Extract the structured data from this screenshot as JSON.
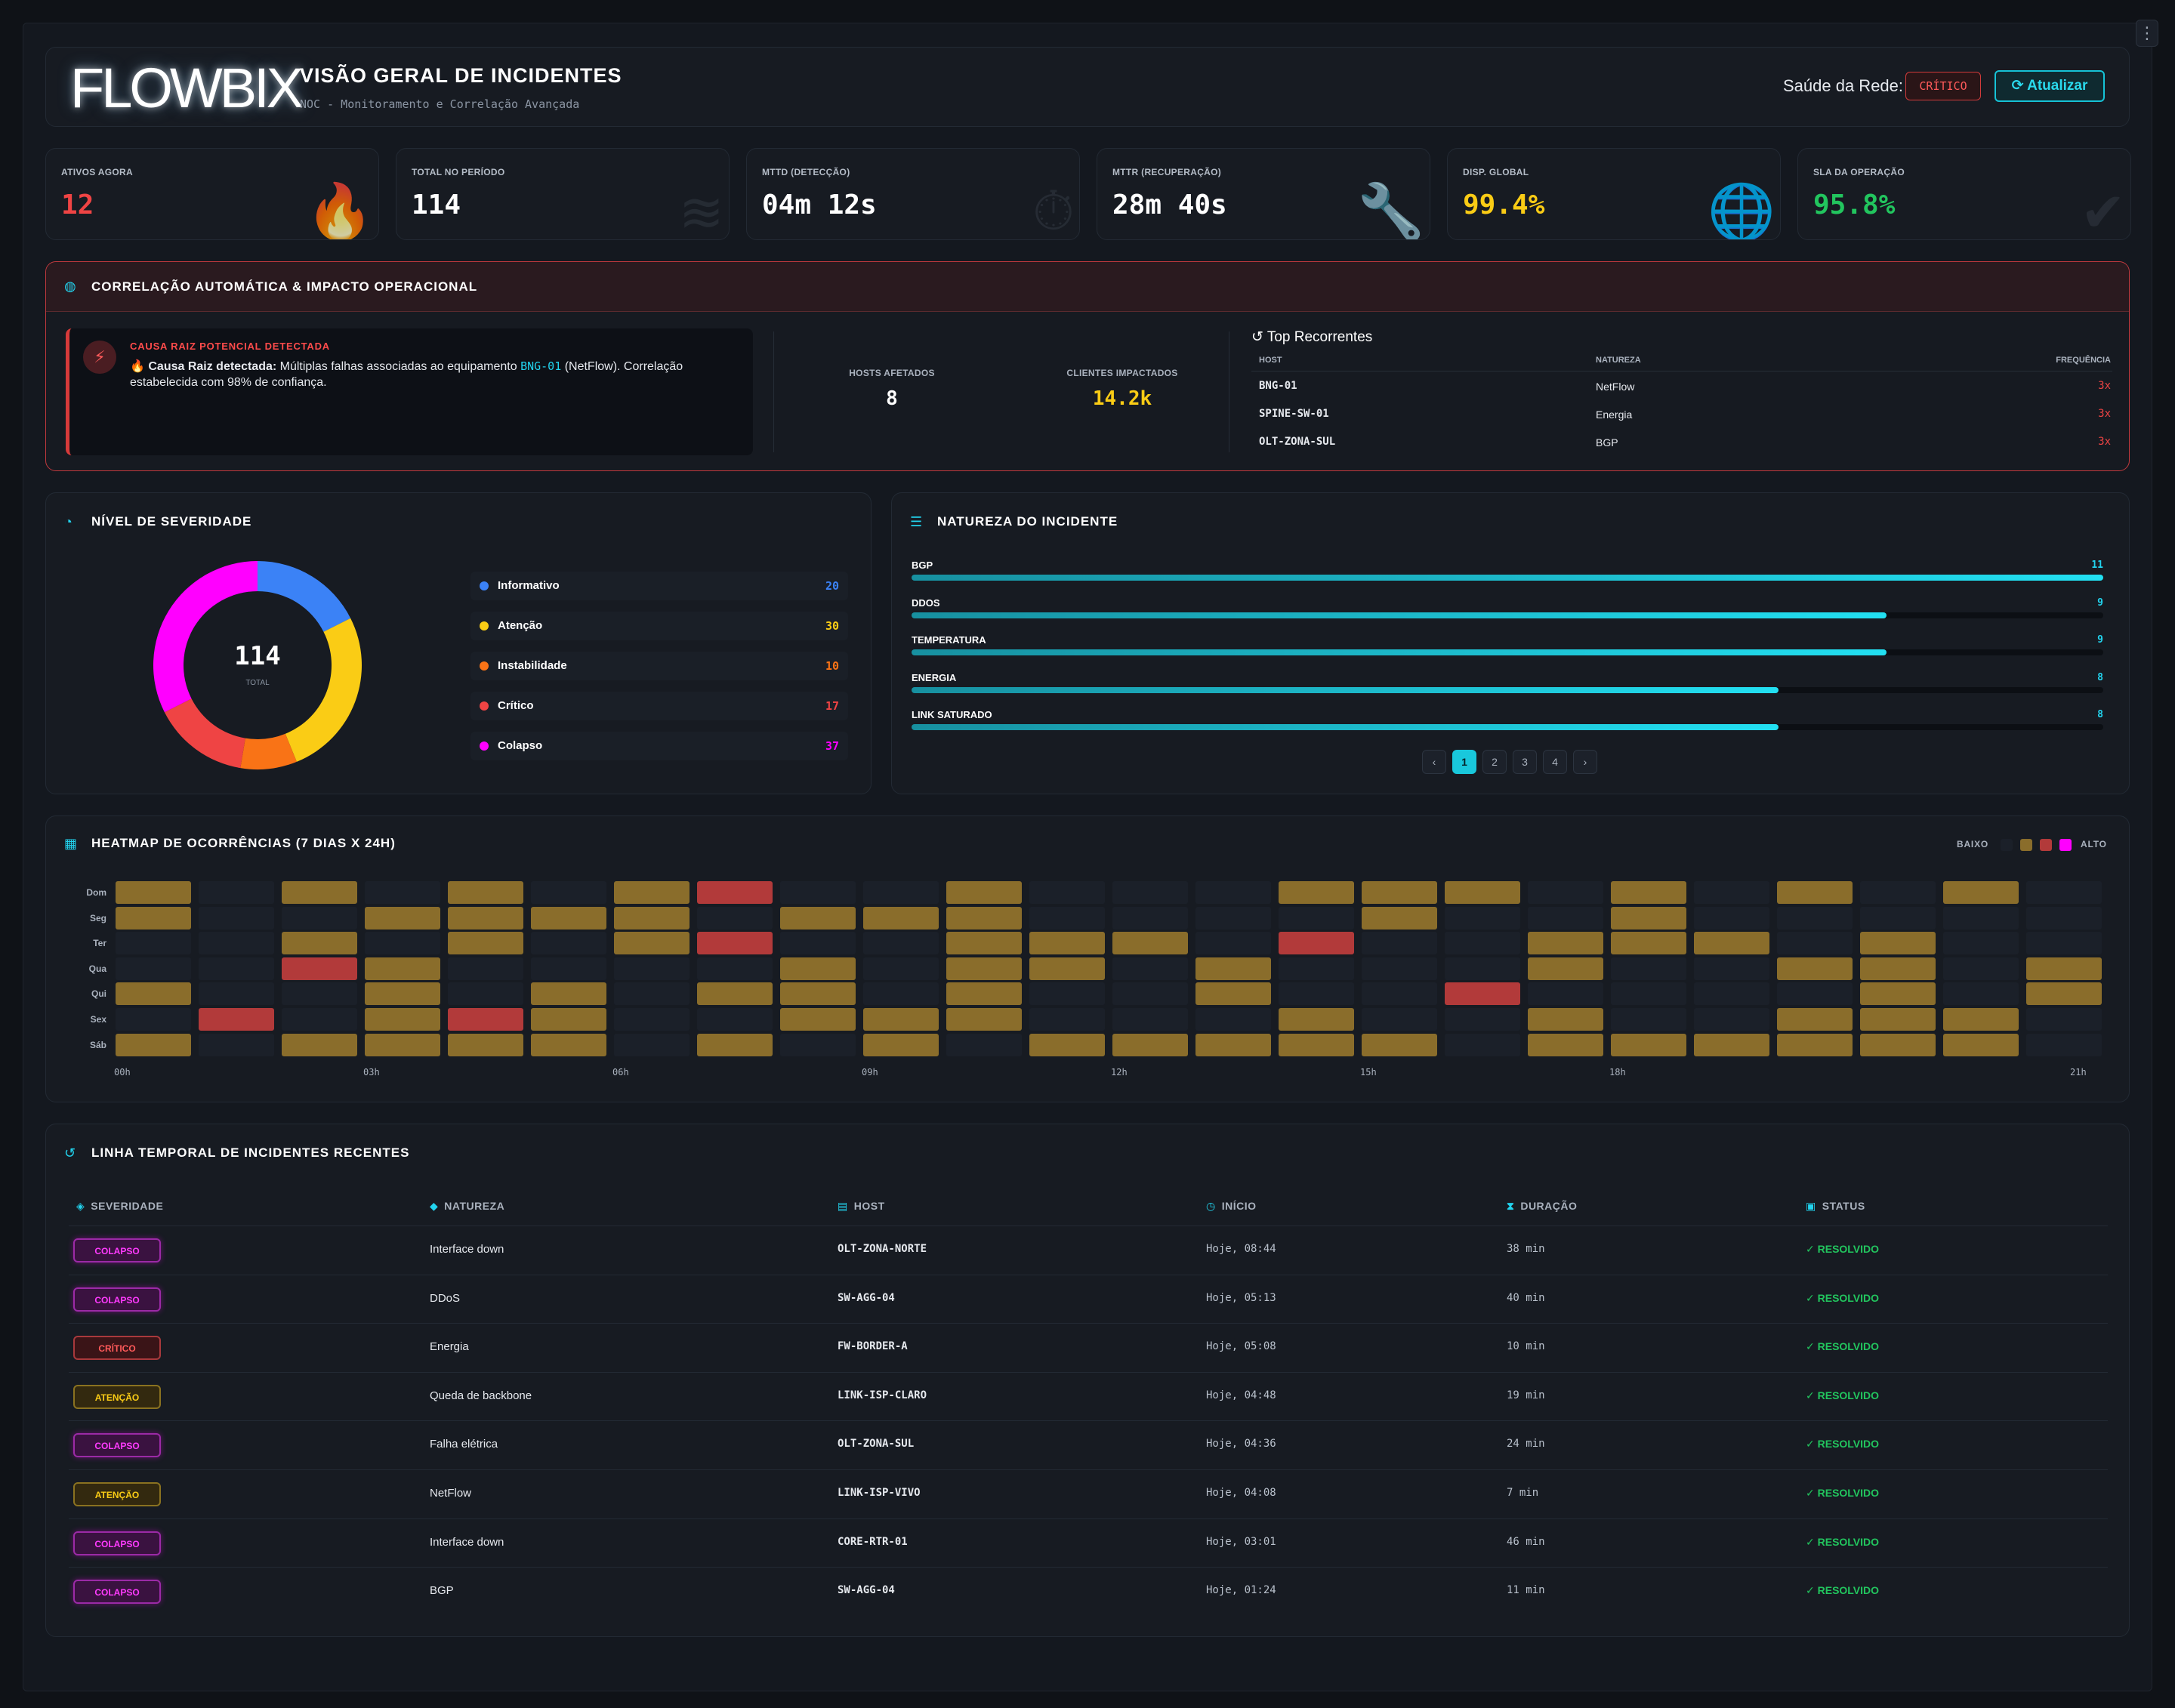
{
  "header": {
    "logo": "FLOWBIX",
    "title": "VISÃO GERAL DE INCIDENTES",
    "subtitle": "NOC - Monitoramento e Correlação Avançada",
    "health_label": "Saúde da Rede:",
    "health_status": "CRÍTICO",
    "refresh_label": "Atualizar"
  },
  "kpis": [
    {
      "label": "ATIVOS AGORA",
      "value": "12",
      "color": "#ef4444",
      "icon": "fire-icon"
    },
    {
      "label": "TOTAL NO PERÍODO",
      "value": "114",
      "color": "#ffffff",
      "icon": "layers-icon"
    },
    {
      "label": "MTTD (DETECÇÃO)",
      "value": "04m 12s",
      "color": "#ffffff",
      "icon": "stopwatch-icon"
    },
    {
      "label": "MTTR (RECUPERAÇÃO)",
      "value": "28m 40s",
      "color": "#ffffff",
      "icon": "wrench-icon"
    },
    {
      "label": "DISP. GLOBAL",
      "value": "99.4%",
      "color": "#facc15",
      "icon": "globe-icon"
    },
    {
      "label": "SLA DA OPERAÇÃO",
      "value": "95.8%",
      "color": "#22c55e",
      "icon": "check-double-icon"
    }
  ],
  "correlation": {
    "title": "CORRELAÇÃO AUTOMÁTICA & IMPACTO OPERACIONAL",
    "rc_tag": "CAUSA RAIZ POTENCIAL DETECTADA",
    "rc_prefix": "🔥 Causa Raiz detectada:",
    "rc_text1": " Múltiplas falhas associadas ao equipamento ",
    "rc_host": "BNG-01",
    "rc_text2": " (NetFlow). Correlação estabelecida com 98% de confiança.",
    "hosts_label": "HOSTS AFETADOS",
    "hosts_value": "8",
    "clients_label": "CLIENTES IMPACTADOS",
    "clients_value": "14.2k",
    "top_title": "Top Recorrentes",
    "top_headers": [
      "HOST",
      "NATUREZA",
      "FREQUÊNCIA"
    ],
    "top_rows": [
      {
        "host": "BNG-01",
        "nature": "NetFlow",
        "freq": "3x"
      },
      {
        "host": "SPINE-SW-01",
        "nature": "Energia",
        "freq": "3x"
      },
      {
        "host": "OLT-ZONA-SUL",
        "nature": "BGP",
        "freq": "3x"
      }
    ]
  },
  "severity": {
    "title": "NÍVEL DE SEVERIDADE",
    "total": "114",
    "total_label": "TOTAL",
    "levels": [
      {
        "name": "Informativo",
        "count": "20",
        "value": 20,
        "color": "#3b82f6"
      },
      {
        "name": "Atenção",
        "count": "30",
        "value": 30,
        "color": "#facc15"
      },
      {
        "name": "Instabilidade",
        "count": "10",
        "value": 10,
        "color": "#f97316"
      },
      {
        "name": "Crítico",
        "count": "17",
        "value": 17,
        "color": "#ef4444"
      },
      {
        "name": "Colapso",
        "count": "37",
        "value": 37,
        "color": "#ff00ff"
      }
    ]
  },
  "nature": {
    "title": "NATUREZA DO INCIDENTE",
    "items": [
      {
        "name": "BGP",
        "count": "11",
        "value": 11
      },
      {
        "name": "DDOS",
        "count": "9",
        "value": 9
      },
      {
        "name": "TEMPERATURA",
        "count": "9",
        "value": 9
      },
      {
        "name": "ENERGIA",
        "count": "8",
        "value": 8
      },
      {
        "name": "LINK SATURADO",
        "count": "8",
        "value": 8
      }
    ],
    "max": 11,
    "pages": [
      "1",
      "2",
      "3",
      "4"
    ],
    "prev": "‹",
    "next": "›"
  },
  "heatmap": {
    "title": "HEATMAP DE OCORRÊNCIAS (7 DIAS X 24H)",
    "low_label": "BAIXO",
    "high_label": "ALTO",
    "days": [
      "Dom",
      "Seg",
      "Ter",
      "Qua",
      "Qui",
      "Sex",
      "Sáb"
    ],
    "hours": [
      "00h",
      "03h",
      "06h",
      "09h",
      "12h",
      "15h",
      "18h",
      "21h"
    ],
    "colors": {
      "0": "#1b2029",
      "1": "#8a6d2b",
      "2": "#b23a3a"
    },
    "grid": [
      [
        1,
        0,
        1,
        0,
        1,
        0,
        1,
        2,
        0,
        0,
        1,
        0,
        0,
        0,
        1,
        1,
        1,
        0,
        1,
        0,
        1,
        0,
        1,
        0
      ],
      [
        1,
        0,
        0,
        1,
        1,
        1,
        1,
        0,
        1,
        1,
        1,
        0,
        0,
        0,
        0,
        1,
        0,
        0,
        1,
        0,
        0,
        0,
        0,
        0
      ],
      [
        0,
        0,
        1,
        0,
        1,
        0,
        1,
        2,
        0,
        0,
        1,
        1,
        1,
        0,
        2,
        0,
        0,
        1,
        1,
        1,
        0,
        1,
        0,
        0
      ],
      [
        0,
        0,
        2,
        1,
        0,
        0,
        0,
        0,
        1,
        0,
        1,
        1,
        0,
        1,
        0,
        0,
        0,
        1,
        0,
        0,
        1,
        1,
        0,
        1
      ],
      [
        1,
        0,
        0,
        1,
        0,
        1,
        0,
        1,
        1,
        0,
        1,
        0,
        0,
        1,
        0,
        0,
        2,
        0,
        0,
        0,
        0,
        1,
        0,
        1
      ],
      [
        0,
        2,
        0,
        1,
        2,
        1,
        0,
        0,
        1,
        1,
        1,
        0,
        0,
        0,
        1,
        0,
        0,
        1,
        0,
        0,
        1,
        1,
        1,
        0
      ],
      [
        1,
        0,
        1,
        1,
        1,
        1,
        0,
        1,
        0,
        1,
        0,
        1,
        1,
        1,
        1,
        1,
        0,
        1,
        1,
        1,
        1,
        1,
        1,
        0
      ]
    ]
  },
  "timeline": {
    "title": "LINHA TEMPORAL DE INCIDENTES RECENTES",
    "headers": [
      "SEVERIDADE",
      "NATUREZA",
      "HOST",
      "INÍCIO",
      "DURAÇÃO",
      "STATUS"
    ],
    "rows": [
      {
        "sev": "COLAPSO",
        "nature": "Interface down",
        "host": "OLT-ZONA-NORTE",
        "start": "Hoje, 08:44",
        "dur": "38 min",
        "status": "✓ RESOLVIDO"
      },
      {
        "sev": "COLAPSO",
        "nature": "DDoS",
        "host": "SW-AGG-04",
        "start": "Hoje, 05:13",
        "dur": "40 min",
        "status": "✓ RESOLVIDO"
      },
      {
        "sev": "CRÍTICO",
        "nature": "Energia",
        "host": "FW-BORDER-A",
        "start": "Hoje, 05:08",
        "dur": "10 min",
        "status": "✓ RESOLVIDO"
      },
      {
        "sev": "ATENÇÃO",
        "nature": "Queda de backbone",
        "host": "LINK-ISP-CLARO",
        "start": "Hoje, 04:48",
        "dur": "19 min",
        "status": "✓ RESOLVIDO"
      },
      {
        "sev": "COLAPSO",
        "nature": "Falha elétrica",
        "host": "OLT-ZONA-SUL",
        "start": "Hoje, 04:36",
        "dur": "24 min",
        "status": "✓ RESOLVIDO"
      },
      {
        "sev": "ATENÇÃO",
        "nature": "NetFlow",
        "host": "LINK-ISP-VIVO",
        "start": "Hoje, 04:08",
        "dur": "7 min",
        "status": "✓ RESOLVIDO"
      },
      {
        "sev": "COLAPSO",
        "nature": "Interface down",
        "host": "CORE-RTR-01",
        "start": "Hoje, 03:01",
        "dur": "46 min",
        "status": "✓ RESOLVIDO"
      },
      {
        "sev": "COLAPSO",
        "nature": "BGP",
        "host": "SW-AGG-04",
        "start": "Hoje, 01:24",
        "dur": "11 min",
        "status": "✓ RESOLVIDO"
      }
    ]
  }
}
